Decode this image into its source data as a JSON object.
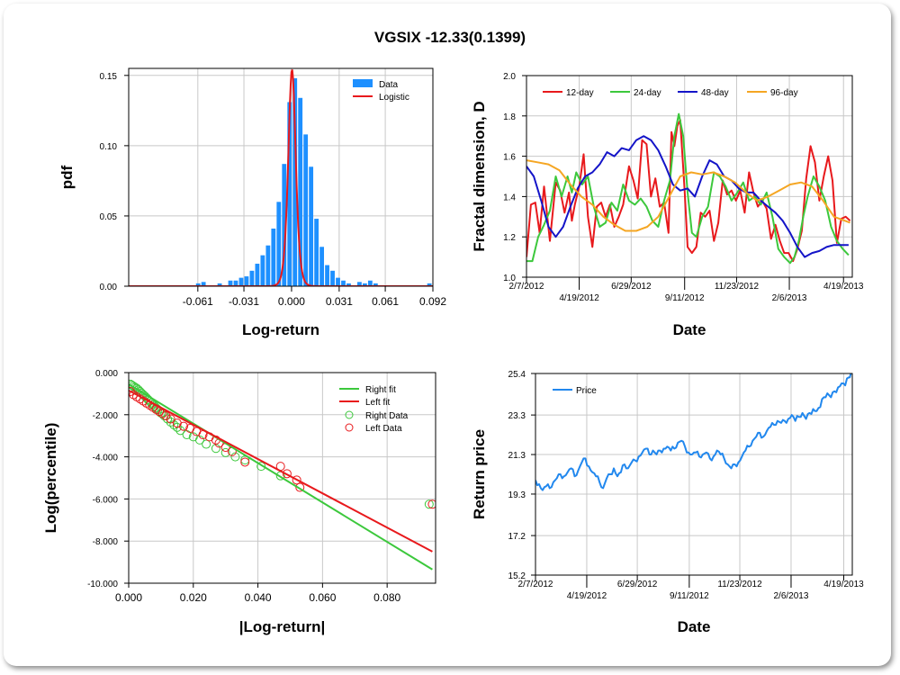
{
  "title": "VGSIX -12.33(0.1399)",
  "colors": {
    "bar": "#1e90ff",
    "red": "#e8191c",
    "green": "#3cc83c",
    "blue": "#1414c8",
    "orange": "#f5a623",
    "price": "#2288ee",
    "grid": "#c8c8c8"
  },
  "chart_data": [
    {
      "id": "histogram",
      "type": "bar",
      "xlabel": "Log-return",
      "ylabel": "pdf",
      "xlim": [
        -0.106,
        0.092
      ],
      "ylim": [
        0,
        0.155
      ],
      "xticks": [
        -0.061,
        -0.031,
        0.0,
        0.031,
        0.061,
        0.092
      ],
      "xtick_labels": [
        "-0.061",
        "-0.031",
        "0.000",
        "0.031",
        "0.061",
        "0.092"
      ],
      "yticks": [
        0.0,
        0.05,
        0.1,
        0.15
      ],
      "ytick_labels": [
        "0.00",
        "0.05",
        "0.10",
        "0.15"
      ],
      "legend": [
        "Data",
        "Logistic"
      ],
      "bar_width": 0.0034,
      "bar_x": [
        -0.0605,
        -0.057,
        -0.0465,
        -0.0395,
        -0.036,
        -0.0325,
        -0.029,
        -0.0255,
        -0.022,
        -0.0185,
        -0.015,
        -0.0115,
        -0.008,
        -0.0045,
        -0.001,
        0.0025,
        0.006,
        0.0095,
        0.013,
        0.0165,
        0.02,
        0.0235,
        0.027,
        0.0305,
        0.034,
        0.0375,
        0.0445,
        0.048,
        0.0515,
        0.055,
        0.09
      ],
      "bar_y": [
        0.002,
        0.003,
        0.002,
        0.004,
        0.004,
        0.006,
        0.007,
        0.011,
        0.016,
        0.022,
        0.029,
        0.041,
        0.06,
        0.087,
        0.131,
        0.148,
        0.134,
        0.108,
        0.085,
        0.048,
        0.028,
        0.015,
        0.011,
        0.006,
        0.004,
        0.002,
        0.003,
        0.002,
        0.004,
        0.002,
        0.002
      ],
      "fit": {
        "name": "Logistic",
        "mu": 0.0003,
        "scale": 0.00162
      }
    },
    {
      "id": "fractal",
      "type": "line",
      "xlabel": "Date",
      "ylabel": "Fractal dimension, D",
      "xlim": [
        0,
        445
      ],
      "ylim": [
        1.0,
        2.0
      ],
      "yticks": [
        1.0,
        1.2,
        1.4,
        1.6,
        1.8,
        2.0
      ],
      "ytick_labels": [
        "1.0",
        "1.2",
        "1.4",
        "1.6",
        "1.8",
        "2.0"
      ],
      "date_ticks": [
        0,
        72,
        143,
        216,
        287,
        359,
        433
      ],
      "date_labels": [
        "2/7/2012",
        "4/19/2012",
        "6/29/2012",
        "9/11/2012",
        "11/23/2012",
        "2/6/2013",
        "4/19/2013"
      ],
      "series": [
        {
          "name": "12-day",
          "x": [
            0,
            6,
            12,
            18,
            24,
            32,
            40,
            46,
            52,
            58,
            62,
            66,
            72,
            78,
            84,
            90,
            96,
            102,
            108,
            114,
            120,
            126,
            132,
            140,
            146,
            152,
            158,
            164,
            170,
            176,
            182,
            188,
            194,
            198,
            202,
            206,
            210,
            216,
            220,
            226,
            232,
            238,
            244,
            250,
            256,
            262,
            268,
            274,
            280,
            286,
            292,
            298,
            304,
            310,
            316,
            322,
            328,
            334,
            340,
            346,
            352,
            358,
            364,
            370,
            376,
            382,
            388,
            394,
            400,
            406,
            412,
            418,
            424,
            430,
            436,
            442
          ],
          "y": [
            1.1,
            1.36,
            1.37,
            1.22,
            1.45,
            1.18,
            1.47,
            1.43,
            1.32,
            1.42,
            1.28,
            1.36,
            1.45,
            1.61,
            1.3,
            1.15,
            1.35,
            1.37,
            1.3,
            1.36,
            1.25,
            1.3,
            1.36,
            1.55,
            1.48,
            1.39,
            1.68,
            1.66,
            1.4,
            1.49,
            1.35,
            1.37,
            1.22,
            1.72,
            1.65,
            1.75,
            1.78,
            1.43,
            1.15,
            1.12,
            1.15,
            1.32,
            1.3,
            1.33,
            1.18,
            1.27,
            1.48,
            1.41,
            1.43,
            1.38,
            1.43,
            1.32,
            1.52,
            1.42,
            1.35,
            1.38,
            1.34,
            1.19,
            1.26,
            1.18,
            1.12,
            1.12,
            1.08,
            1.14,
            1.23,
            1.49,
            1.65,
            1.57,
            1.38,
            1.5,
            1.6,
            1.48,
            1.17,
            1.29,
            1.3,
            1.28
          ]
        },
        {
          "name": "24-day",
          "x": [
            0,
            8,
            16,
            24,
            32,
            40,
            48,
            56,
            62,
            68,
            76,
            84,
            92,
            100,
            108,
            116,
            124,
            132,
            140,
            148,
            156,
            164,
            172,
            180,
            188,
            196,
            202,
            208,
            214,
            220,
            226,
            232,
            240,
            248,
            256,
            264,
            272,
            280,
            288,
            296,
            304,
            312,
            320,
            328,
            336,
            344,
            352,
            360,
            366,
            372,
            378,
            384,
            392,
            400,
            408,
            416,
            424,
            432,
            440
          ],
          "y": [
            1.08,
            1.08,
            1.2,
            1.26,
            1.33,
            1.5,
            1.4,
            1.5,
            1.42,
            1.52,
            1.46,
            1.5,
            1.35,
            1.25,
            1.27,
            1.37,
            1.33,
            1.46,
            1.38,
            1.36,
            1.39,
            1.35,
            1.28,
            1.25,
            1.38,
            1.48,
            1.7,
            1.81,
            1.7,
            1.42,
            1.22,
            1.2,
            1.3,
            1.35,
            1.52,
            1.5,
            1.45,
            1.38,
            1.42,
            1.47,
            1.38,
            1.4,
            1.36,
            1.42,
            1.3,
            1.14,
            1.1,
            1.07,
            1.1,
            1.18,
            1.3,
            1.4,
            1.5,
            1.45,
            1.38,
            1.25,
            1.18,
            1.14,
            1.11
          ]
        },
        {
          "name": "48-day",
          "x": [
            0,
            10,
            20,
            30,
            40,
            50,
            60,
            70,
            80,
            90,
            100,
            110,
            120,
            130,
            140,
            150,
            160,
            170,
            180,
            190,
            200,
            210,
            220,
            230,
            240,
            250,
            260,
            270,
            280,
            290,
            300,
            310,
            320,
            330,
            340,
            350,
            360,
            370,
            380,
            390,
            400,
            410,
            420,
            430,
            440
          ],
          "y": [
            1.55,
            1.5,
            1.38,
            1.25,
            1.2,
            1.25,
            1.35,
            1.44,
            1.5,
            1.52,
            1.56,
            1.62,
            1.6,
            1.64,
            1.63,
            1.68,
            1.7,
            1.68,
            1.63,
            1.55,
            1.46,
            1.43,
            1.44,
            1.4,
            1.5,
            1.58,
            1.56,
            1.5,
            1.48,
            1.44,
            1.42,
            1.42,
            1.38,
            1.35,
            1.32,
            1.28,
            1.22,
            1.15,
            1.1,
            1.12,
            1.13,
            1.15,
            1.16,
            1.16,
            1.16
          ]
        },
        {
          "name": "96-day",
          "x": [
            0,
            15,
            30,
            45,
            60,
            75,
            90,
            105,
            120,
            135,
            150,
            165,
            180,
            195,
            210,
            225,
            240,
            255,
            270,
            285,
            300,
            315,
            330,
            345,
            360,
            375,
            390,
            405,
            420,
            435,
            442
          ],
          "y": [
            1.58,
            1.57,
            1.56,
            1.53,
            1.46,
            1.4,
            1.36,
            1.3,
            1.26,
            1.23,
            1.23,
            1.25,
            1.3,
            1.4,
            1.5,
            1.52,
            1.51,
            1.52,
            1.5,
            1.47,
            1.42,
            1.38,
            1.4,
            1.43,
            1.46,
            1.47,
            1.45,
            1.38,
            1.3,
            1.28,
            1.27
          ]
        }
      ]
    },
    {
      "id": "tail",
      "type": "scatter",
      "xlabel": "|Log-return|",
      "ylabel": "Log(percentile)",
      "xlim": [
        0,
        0.095
      ],
      "ylim": [
        -10,
        0
      ],
      "xticks": [
        0,
        0.02,
        0.04,
        0.06,
        0.08
      ],
      "xtick_labels": [
        "0.000",
        "0.020",
        "0.040",
        "0.060",
        "0.080"
      ],
      "yticks": [
        0,
        -2,
        -4,
        -6,
        -8,
        -10
      ],
      "ytick_labels": [
        "0.000",
        "-2.000",
        "-4.000",
        "-6.000",
        "-8.000",
        "-10.000"
      ],
      "legend": [
        "Right fit",
        "Left fit",
        "Right Data",
        "Left Data"
      ],
      "right_fit": {
        "name": "Right fit",
        "x": [
          0,
          0.094
        ],
        "y": [
          -0.55,
          -9.35
        ]
      },
      "left_fit": {
        "name": "Left fit",
        "x": [
          0,
          0.094
        ],
        "y": [
          -0.85,
          -8.5
        ]
      },
      "right_data": {
        "name": "Right Data",
        "x": [
          0.0005,
          0.001,
          0.0015,
          0.002,
          0.0025,
          0.003,
          0.0035,
          0.004,
          0.0045,
          0.005,
          0.0055,
          0.006,
          0.0065,
          0.007,
          0.0075,
          0.008,
          0.0085,
          0.009,
          0.0095,
          0.01,
          0.011,
          0.012,
          0.013,
          0.014,
          0.015,
          0.016,
          0.018,
          0.02,
          0.022,
          0.024,
          0.027,
          0.03,
          0.033,
          0.036,
          0.041,
          0.047,
          0.093
        ],
        "y": [
          -0.55,
          -0.6,
          -0.65,
          -0.7,
          -0.75,
          -0.82,
          -0.9,
          -0.98,
          -1.05,
          -1.12,
          -1.2,
          -1.28,
          -1.36,
          -1.44,
          -1.52,
          -1.6,
          -1.68,
          -1.76,
          -1.84,
          -1.92,
          -2.05,
          -2.2,
          -2.35,
          -2.48,
          -2.6,
          -2.75,
          -2.95,
          -3.05,
          -3.2,
          -3.4,
          -3.6,
          -3.8,
          -4.0,
          -4.15,
          -4.45,
          -4.9,
          -6.25
        ]
      },
      "left_data": {
        "name": "Left Data",
        "x": [
          0.0005,
          0.0015,
          0.0025,
          0.0035,
          0.0045,
          0.0055,
          0.0065,
          0.0075,
          0.0085,
          0.0095,
          0.0105,
          0.0115,
          0.013,
          0.015,
          0.017,
          0.019,
          0.021,
          0.023,
          0.025,
          0.027,
          0.028,
          0.03,
          0.032,
          0.036,
          0.047,
          0.049,
          0.052,
          0.053,
          0.094
        ],
        "y": [
          -0.9,
          -1.05,
          -1.15,
          -1.25,
          -1.35,
          -1.45,
          -1.55,
          -1.65,
          -1.75,
          -1.85,
          -1.95,
          -2.05,
          -2.2,
          -2.4,
          -2.55,
          -2.65,
          -2.8,
          -2.95,
          -3.05,
          -3.2,
          -3.35,
          -3.55,
          -3.75,
          -4.25,
          -4.45,
          -4.8,
          -5.1,
          -5.45,
          -6.25
        ]
      }
    },
    {
      "id": "price",
      "type": "line",
      "xlabel": "Date",
      "ylabel": "Return price",
      "xlim": [
        0,
        445
      ],
      "ylim": [
        15.2,
        25.4
      ],
      "yticks": [
        15.2,
        17.2,
        19.3,
        21.3,
        23.3,
        25.4
      ],
      "ytick_labels": [
        "15.2",
        "17.2",
        "19.3",
        "21.3",
        "23.3",
        "25.4"
      ],
      "date_ticks": [
        0,
        72,
        143,
        216,
        287,
        359,
        433
      ],
      "date_labels": [
        "2/7/2012",
        "4/19/2012",
        "6/29/2012",
        "9/11/2012",
        "11/23/2012",
        "2/6/2013",
        "4/19/2013"
      ],
      "legend": [
        "Price"
      ],
      "series": [
        {
          "name": "Price",
          "x": [
            0,
            5,
            10,
            15,
            20,
            25,
            30,
            35,
            40,
            45,
            50,
            55,
            60,
            65,
            70,
            75,
            80,
            85,
            90,
            95,
            100,
            105,
            110,
            115,
            120,
            125,
            130,
            135,
            140,
            145,
            150,
            155,
            160,
            165,
            170,
            175,
            180,
            185,
            190,
            195,
            200,
            205,
            210,
            215,
            220,
            225,
            230,
            235,
            240,
            245,
            250,
            255,
            260,
            265,
            270,
            275,
            280,
            285,
            290,
            295,
            300,
            305,
            310,
            315,
            320,
            325,
            330,
            335,
            340,
            345,
            350,
            355,
            360,
            365,
            370,
            375,
            380,
            385,
            390,
            395,
            400,
            405,
            410,
            415,
            420,
            425,
            430,
            435,
            440,
            443
          ],
          "y": [
            20.0,
            19.8,
            19.5,
            19.7,
            19.6,
            19.9,
            20.1,
            20.3,
            20.2,
            20.4,
            20.6,
            20.2,
            20.5,
            20.9,
            21.1,
            20.7,
            20.4,
            20.2,
            19.9,
            19.6,
            20.1,
            20.3,
            20.6,
            20.2,
            20.4,
            20.8,
            20.6,
            20.9,
            21.0,
            21.2,
            21.4,
            21.6,
            21.3,
            21.5,
            21.3,
            21.5,
            21.6,
            21.7,
            21.5,
            21.6,
            21.9,
            22.0,
            21.7,
            21.4,
            21.3,
            21.4,
            21.2,
            21.3,
            21.4,
            21.1,
            21.2,
            21.5,
            21.3,
            21.1,
            20.8,
            20.6,
            20.8,
            20.9,
            21.2,
            21.5,
            21.7,
            22.0,
            22.2,
            22.4,
            22.2,
            22.5,
            22.7,
            22.8,
            23.0,
            22.9,
            23.0,
            23.1,
            23.3,
            23.0,
            23.2,
            23.4,
            23.1,
            23.4,
            23.6,
            23.5,
            23.7,
            24.2,
            24.4,
            24.2,
            24.5,
            24.7,
            24.9,
            24.8,
            25.2,
            25.4
          ]
        }
      ]
    }
  ]
}
